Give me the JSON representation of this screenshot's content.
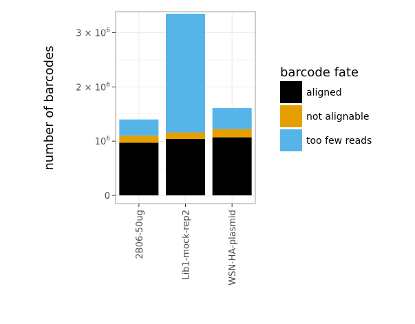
{
  "chart_data": {
    "type": "bar",
    "stacked": true,
    "categories": [
      "2B06-50ug",
      "Lib1-mock-rep2",
      "WSN-HA-plasmid"
    ],
    "series": [
      {
        "name": "aligned",
        "color": "#000000",
        "values": [
          970000,
          1040000,
          1070000
        ]
      },
      {
        "name": "not alignable",
        "color": "#E69F00",
        "values": [
          130000,
          120000,
          150000
        ]
      },
      {
        "name": "too few reads",
        "color": "#56B4E9",
        "values": [
          300000,
          2190000,
          390000
        ]
      }
    ],
    "xlabel": "",
    "ylabel": "number of barcodes",
    "ylim": [
      0,
      3400000
    ],
    "y_ticks": [
      {
        "value": 0,
        "base": "0",
        "exp": ""
      },
      {
        "value": 1000000,
        "base": "10",
        "exp": "6"
      },
      {
        "value": 2000000,
        "base": "2 × 10",
        "exp": "6"
      },
      {
        "value": 3000000,
        "base": "3 × 10",
        "exp": "6"
      }
    ],
    "legend_title": "barcode fate",
    "legend_position": "right",
    "grid": true
  }
}
